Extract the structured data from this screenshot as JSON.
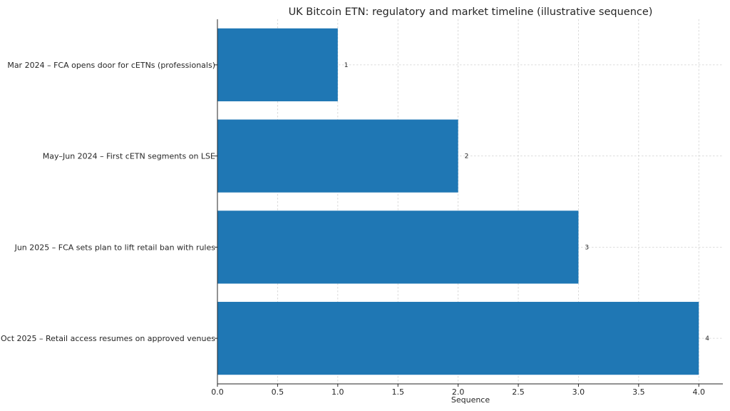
{
  "chart_data": {
    "type": "bar",
    "orientation": "horizontal",
    "title": "UK Bitcoin ETN: regulatory and market timeline (illustrative sequence)",
    "xlabel": "Sequence",
    "ylabel": "",
    "categories": [
      "Mar 2024 – FCA opens door for cETNs (professionals)",
      "May–Jun 2024 – First cETN segments on LSE",
      "Jun 2025 – FCA sets plan to lift retail ban with rules",
      "Oct 2025 – Retail access resumes on approved venues"
    ],
    "values": [
      1,
      2,
      3,
      4
    ],
    "data_labels": [
      "1",
      "2",
      "3",
      "4"
    ],
    "xlim": [
      0,
      4.2
    ],
    "xticks": [
      0.0,
      0.5,
      1.0,
      1.5,
      2.0,
      2.5,
      3.0,
      3.5,
      4.0
    ],
    "xtick_labels": [
      "0.0",
      "0.5",
      "1.0",
      "1.5",
      "2.0",
      "2.5",
      "3.0",
      "3.5",
      "4.0"
    ],
    "grid": true,
    "bar_color": "#1f77b4"
  }
}
